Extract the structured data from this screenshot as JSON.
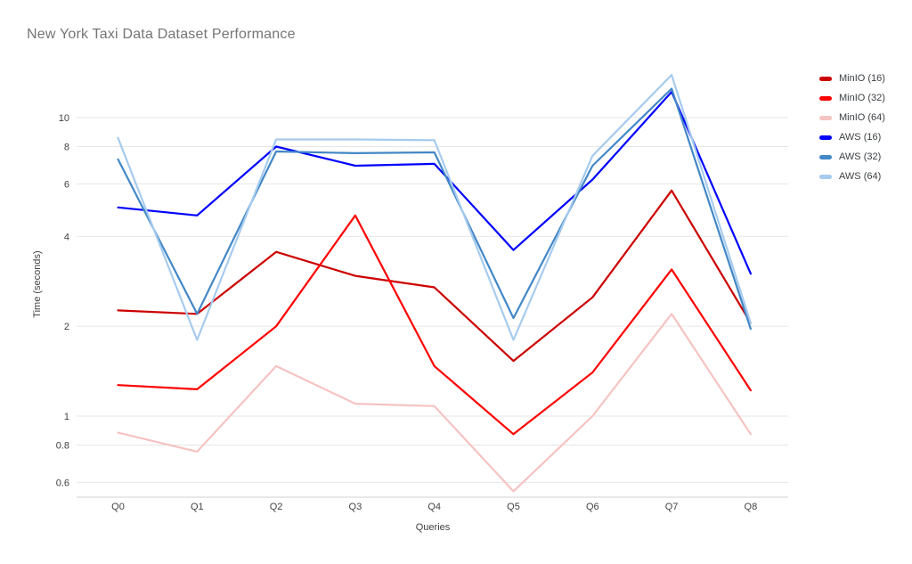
{
  "chart_data": {
    "type": "line",
    "title": "New York Taxi Data Dataset Performance",
    "xlabel": "Queries",
    "ylabel": "Time (seconds)",
    "y_scale": "log",
    "grid": true,
    "legend_position": "right",
    "ylim": [
      0.5,
      15
    ],
    "yticks": [
      10,
      8,
      6,
      4,
      2,
      1,
      0.8,
      0.6
    ],
    "categories": [
      "Q0",
      "Q1",
      "Q2",
      "Q3",
      "Q4",
      "Q5",
      "Q6",
      "Q7",
      "Q8"
    ],
    "series": [
      {
        "name": "MinIO (16)",
        "color": "#cc0000",
        "values": [
          2.26,
          2.2,
          3.55,
          2.95,
          2.7,
          1.53,
          2.5,
          5.7,
          2.05
        ]
      },
      {
        "name": "MinIO (32)",
        "color": "#ff0000",
        "values": [
          1.27,
          1.23,
          2.0,
          4.7,
          1.47,
          0.87,
          1.4,
          3.1,
          1.22
        ]
      },
      {
        "name": "MinIO (64)",
        "color": "#f5c3c1",
        "values": [
          0.88,
          0.76,
          1.47,
          1.1,
          1.08,
          0.56,
          1.0,
          2.2,
          0.87
        ]
      },
      {
        "name": "AWS (16)",
        "color": "#0000ff",
        "values": [
          5.0,
          4.7,
          8.0,
          6.9,
          7.0,
          3.6,
          6.2,
          12.2,
          3.0
        ]
      },
      {
        "name": "AWS (32)",
        "color": "#4287c6",
        "values": [
          7.25,
          2.2,
          7.7,
          7.6,
          7.65,
          2.13,
          6.9,
          12.5,
          1.96
        ]
      },
      {
        "name": "AWS (64)",
        "color": "#a6cbee",
        "values": [
          8.55,
          1.8,
          8.45,
          8.45,
          8.4,
          1.8,
          7.45,
          13.9,
          2.05
        ]
      }
    ]
  },
  "styles": {
    "title_color": "#757575",
    "axis_title_color": "#424242",
    "tick_label_color": "#424242",
    "legend_text_color": "#3c4043",
    "grid_color": "#e6e6e6",
    "axis_line_color": "#d0d0d0",
    "background": "#ffffff"
  }
}
